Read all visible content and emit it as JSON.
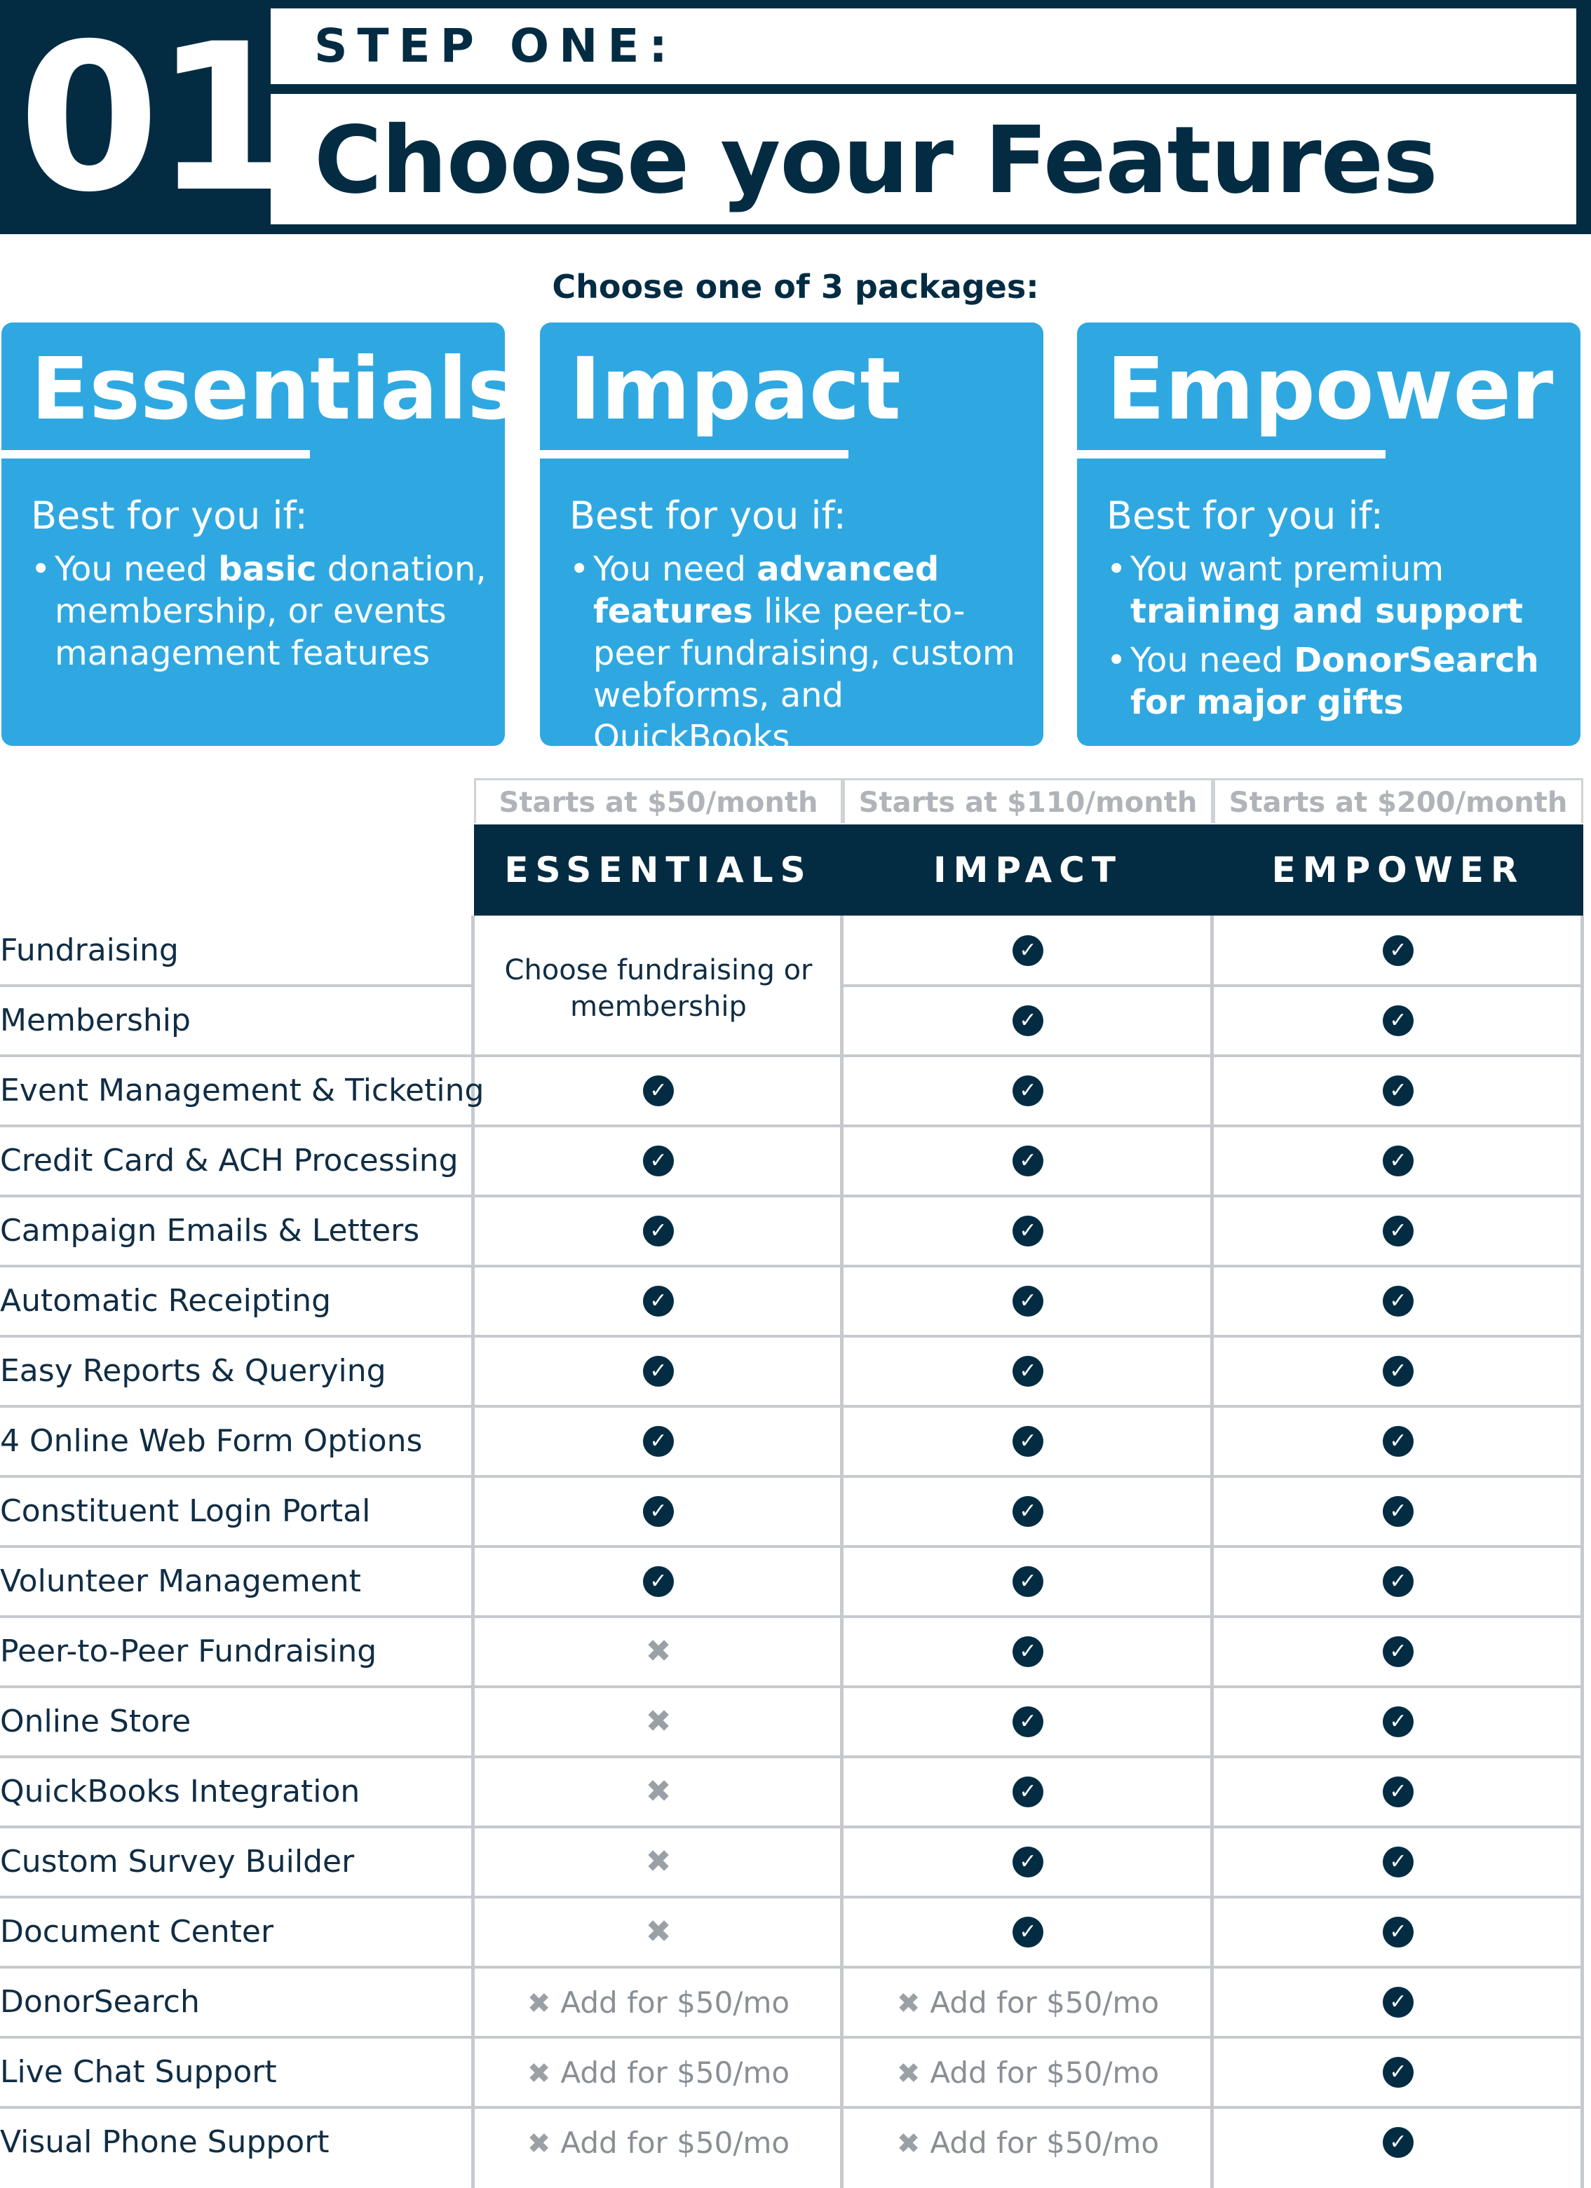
{
  "header": {
    "step_number": "01",
    "step_label": "STEP ONE:",
    "title": "Choose your Features"
  },
  "packages_prompt": "Choose one of 3 packages:",
  "packages": [
    {
      "name": "Essentials",
      "subtitle": "Best for you if:",
      "bullets": [
        {
          "pre": "You need ",
          "bold": "basic",
          "post": " donation, membership, or events management features"
        }
      ]
    },
    {
      "name": "Impact",
      "subtitle": "Best for you if:",
      "bullets": [
        {
          "pre": "You need ",
          "bold": "advanced features",
          "post": " like peer-to-peer fundraising, custom webforms, and QuickBooks"
        }
      ]
    },
    {
      "name": "Empower",
      "subtitle": "Best for you if:",
      "bullets": [
        {
          "pre": "You want premium ",
          "bold": "training and support",
          "post": ""
        },
        {
          "pre": "You need ",
          "bold": "DonorSearch for major gifts",
          "post": ""
        }
      ]
    }
  ],
  "table": {
    "columns": [
      {
        "price": "Starts at $50/month",
        "name": "ESSENTIALS"
      },
      {
        "price": "Starts at $110/month",
        "name": "IMPACT"
      },
      {
        "price": "Starts at $200/month",
        "name": "EMPOWER"
      }
    ],
    "merged_note": "Choose fundraising or membership",
    "addon_text": "Add for $50/mo",
    "rows": [
      {
        "feature": "Fundraising",
        "values": [
          "merged",
          "check",
          "check"
        ]
      },
      {
        "feature": "Membership",
        "values": [
          "merged",
          "check",
          "check"
        ]
      },
      {
        "feature": "Event Management & Ticketing",
        "values": [
          "check",
          "check",
          "check"
        ]
      },
      {
        "feature": "Credit Card & ACH Processing",
        "values": [
          "check",
          "check",
          "check"
        ]
      },
      {
        "feature": "Campaign Emails & Letters",
        "values": [
          "check",
          "check",
          "check"
        ]
      },
      {
        "feature": "Automatic Receipting",
        "values": [
          "check",
          "check",
          "check"
        ]
      },
      {
        "feature": "Easy Reports & Querying",
        "values": [
          "check",
          "check",
          "check"
        ]
      },
      {
        "feature": "4 Online Web Form Options",
        "values": [
          "check",
          "check",
          "check"
        ]
      },
      {
        "feature": "Constituent Login Portal",
        "values": [
          "check",
          "check",
          "check"
        ]
      },
      {
        "feature": "Volunteer Management",
        "values": [
          "check",
          "check",
          "check"
        ]
      },
      {
        "feature": "Peer-to-Peer Fundraising",
        "values": [
          "x",
          "check",
          "check"
        ]
      },
      {
        "feature": "Online Store",
        "values": [
          "x",
          "check",
          "check"
        ]
      },
      {
        "feature": "QuickBooks Integration",
        "values": [
          "x",
          "check",
          "check"
        ]
      },
      {
        "feature": "Custom Survey Builder",
        "values": [
          "x",
          "check",
          "check"
        ]
      },
      {
        "feature": "Document Center",
        "values": [
          "x",
          "check",
          "check"
        ]
      },
      {
        "feature": "DonorSearch",
        "values": [
          "addon",
          "addon",
          "check"
        ]
      },
      {
        "feature": "Live Chat Support",
        "values": [
          "addon",
          "addon",
          "check"
        ]
      },
      {
        "feature": "Visual Phone Support",
        "values": [
          "addon",
          "addon",
          "check"
        ]
      }
    ]
  },
  "colors": {
    "navy": "#032c43",
    "blue": "#2fa8e1",
    "grid": "#c6cacf",
    "muted": "#8a8f95"
  }
}
